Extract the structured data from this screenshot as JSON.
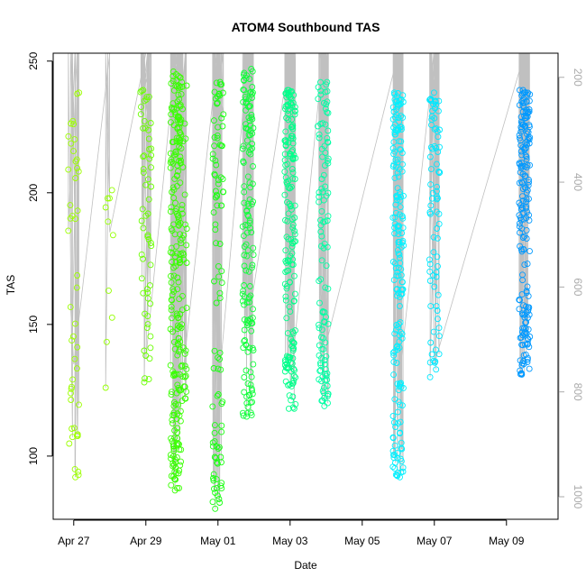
{
  "chart_data": {
    "type": "scatter",
    "title": "ATOM4 Southbound TAS",
    "xlabel": "Date",
    "ylabel": "TAS",
    "x_range": [
      "2016-04-26T10:20",
      "2016-05-10T10:20"
    ],
    "ylim": [
      76,
      253
    ],
    "y_ticks": [
      100,
      150,
      200,
      250
    ],
    "x_ticks": [
      {
        "label": "Apr 27",
        "date": "2016-04-27"
      },
      {
        "label": "Apr 29",
        "date": "2016-04-29"
      },
      {
        "label": "May 01",
        "date": "2016-05-01"
      },
      {
        "label": "May 03",
        "date": "2016-05-03"
      },
      {
        "label": "May 05",
        "date": "2016-05-05"
      },
      {
        "label": "May 07",
        "date": "2016-05-07"
      },
      {
        "label": "May 09",
        "date": "2016-05-09"
      }
    ],
    "secondary_axis": {
      "side": "right",
      "color": "#aaaaaa",
      "reversed": true,
      "ylim": [
        1043,
        154
      ],
      "ticks": [
        200,
        400,
        600,
        800,
        1000
      ]
    },
    "point_style": "open-circle",
    "trace_color": "#c0c0c0",
    "flights": [
      {
        "date": "2016-04-27T00:00",
        "color": "#9cff00",
        "y_min": 92,
        "y_max": 238,
        "trace_top": 253,
        "trace_bottom": 135,
        "n": 48
      },
      {
        "date": "2016-04-28T00:00",
        "color": "#94ff00",
        "y_min": 126,
        "y_max": 201,
        "trace_top": 253,
        "trace_bottom": 185,
        "n": 10
      },
      {
        "date": "2016-04-29T00:00",
        "color": "#6aff00",
        "y_min": 128,
        "y_max": 239,
        "trace_top": 253,
        "trace_bottom": 137,
        "n": 60
      },
      {
        "date": "2016-04-29T20:00",
        "color": "#39ff00",
        "y_min": 87,
        "y_max": 246,
        "trace_top": 253,
        "trace_bottom": 122,
        "n": 200
      },
      {
        "date": "2016-04-30T00:00",
        "color": "#34ff00",
        "y_min": 121,
        "y_max": 242,
        "trace_top": 253,
        "trace_bottom": 128,
        "n": 70
      },
      {
        "date": "2016-05-01T00:00",
        "color": "#1aff12",
        "y_min": 80,
        "y_max": 242,
        "trace_top": 253,
        "trace_bottom": 123,
        "n": 100
      },
      {
        "date": "2016-05-01T20:00",
        "color": "#10ff3a",
        "y_min": 115,
        "y_max": 247,
        "trace_top": 253,
        "trace_bottom": 150,
        "n": 150
      },
      {
        "date": "2016-05-03T00:00",
        "color": "#00ff8a",
        "y_min": 118,
        "y_max": 239,
        "trace_top": 253,
        "trace_bottom": 126,
        "n": 180
      },
      {
        "date": "2016-05-03T22:00",
        "color": "#00ffa4",
        "y_min": 119,
        "y_max": 242,
        "trace_top": 253,
        "trace_bottom": 138,
        "n": 110
      },
      {
        "date": "2016-05-06T00:00",
        "color": "#00f0ff",
        "y_min": 92,
        "y_max": 238,
        "trace_top": 253,
        "trace_bottom": 126,
        "n": 190
      },
      {
        "date": "2016-05-07T00:00",
        "color": "#00e8ff",
        "y_min": 130,
        "y_max": 238,
        "trace_top": 253,
        "trace_bottom": 135,
        "n": 80
      },
      {
        "date": "2016-05-09T12:00",
        "color": "#0099ff",
        "y_min": 131,
        "y_max": 239,
        "trace_top": 253,
        "trace_bottom": 132,
        "n": 190
      }
    ]
  }
}
